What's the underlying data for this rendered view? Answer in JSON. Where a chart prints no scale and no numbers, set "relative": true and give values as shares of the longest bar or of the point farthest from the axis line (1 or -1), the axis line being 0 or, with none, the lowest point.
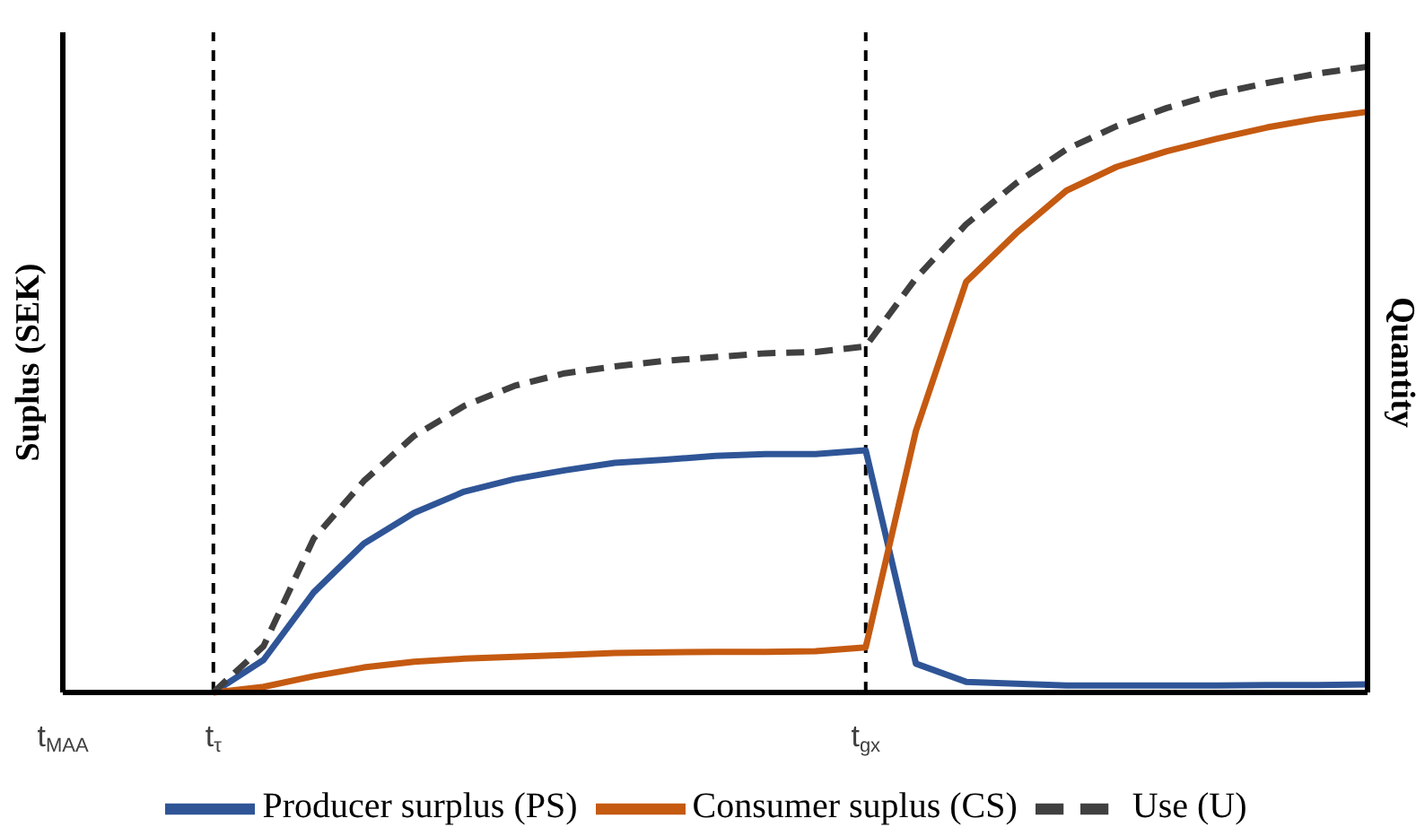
{
  "chart_data": {
    "type": "line",
    "relative": true,
    "ylabel": "Suplus (SEK)",
    "y2label": "Quantity",
    "legend": "bottom",
    "grid": false,
    "marker": "none",
    "categories": [
      "t$_{MAA}$",
      null,
      null,
      "t$_{τ}$",
      null,
      null,
      null,
      null,
      null,
      null,
      null,
      null,
      null,
      null,
      null,
      null,
      "t$_{gx}$",
      null,
      null,
      null,
      null,
      null,
      null,
      null,
      null,
      null,
      null
    ],
    "series": [
      {
        "name": "Producer surplus (PS)",
        "color": "#2f5597",
        "line_style": "solid",
        "values": [
          null,
          null,
          null,
          0,
          0.052,
          0.16,
          0.238,
          0.287,
          0.321,
          0.341,
          0.355,
          0.367,
          0.372,
          0.378,
          0.381,
          0.381,
          0.387,
          0.046,
          0.017,
          0.014,
          0.011,
          0.011,
          0.011,
          0.011,
          0.012,
          0.012,
          0.013
        ]
      },
      {
        "name": "Consumer suplus (CS)",
        "color": "#c55a11",
        "line_style": "solid",
        "values": [
          null,
          null,
          null,
          0,
          0.009,
          0.026,
          0.04,
          0.049,
          0.054,
          0.057,
          0.06,
          0.063,
          0.064,
          0.065,
          0.065,
          0.066,
          0.072,
          0.418,
          0.656,
          0.734,
          0.802,
          0.84,
          0.865,
          0.885,
          0.903,
          0.917,
          0.928
        ]
      },
      {
        "name": "Use (U)",
        "color": "#404040",
        "line_style": "dashed",
        "values": [
          null,
          null,
          null,
          0,
          0.074,
          0.246,
          0.338,
          0.41,
          0.458,
          0.49,
          0.51,
          0.521,
          0.53,
          0.536,
          0.542,
          0.544,
          0.553,
          0.662,
          0.748,
          0.814,
          0.868,
          0.905,
          0.934,
          0.957,
          0.974,
          0.989,
          1
        ]
      }
    ],
    "ref_lines": [
      {
        "axis": "x",
        "value": "t$_{τ}$",
        "color": "#000000",
        "line_style": "dashed"
      },
      {
        "axis": "x",
        "value": "t$_{gx}$",
        "color": "#000000",
        "line_style": "dashed"
      }
    ]
  }
}
